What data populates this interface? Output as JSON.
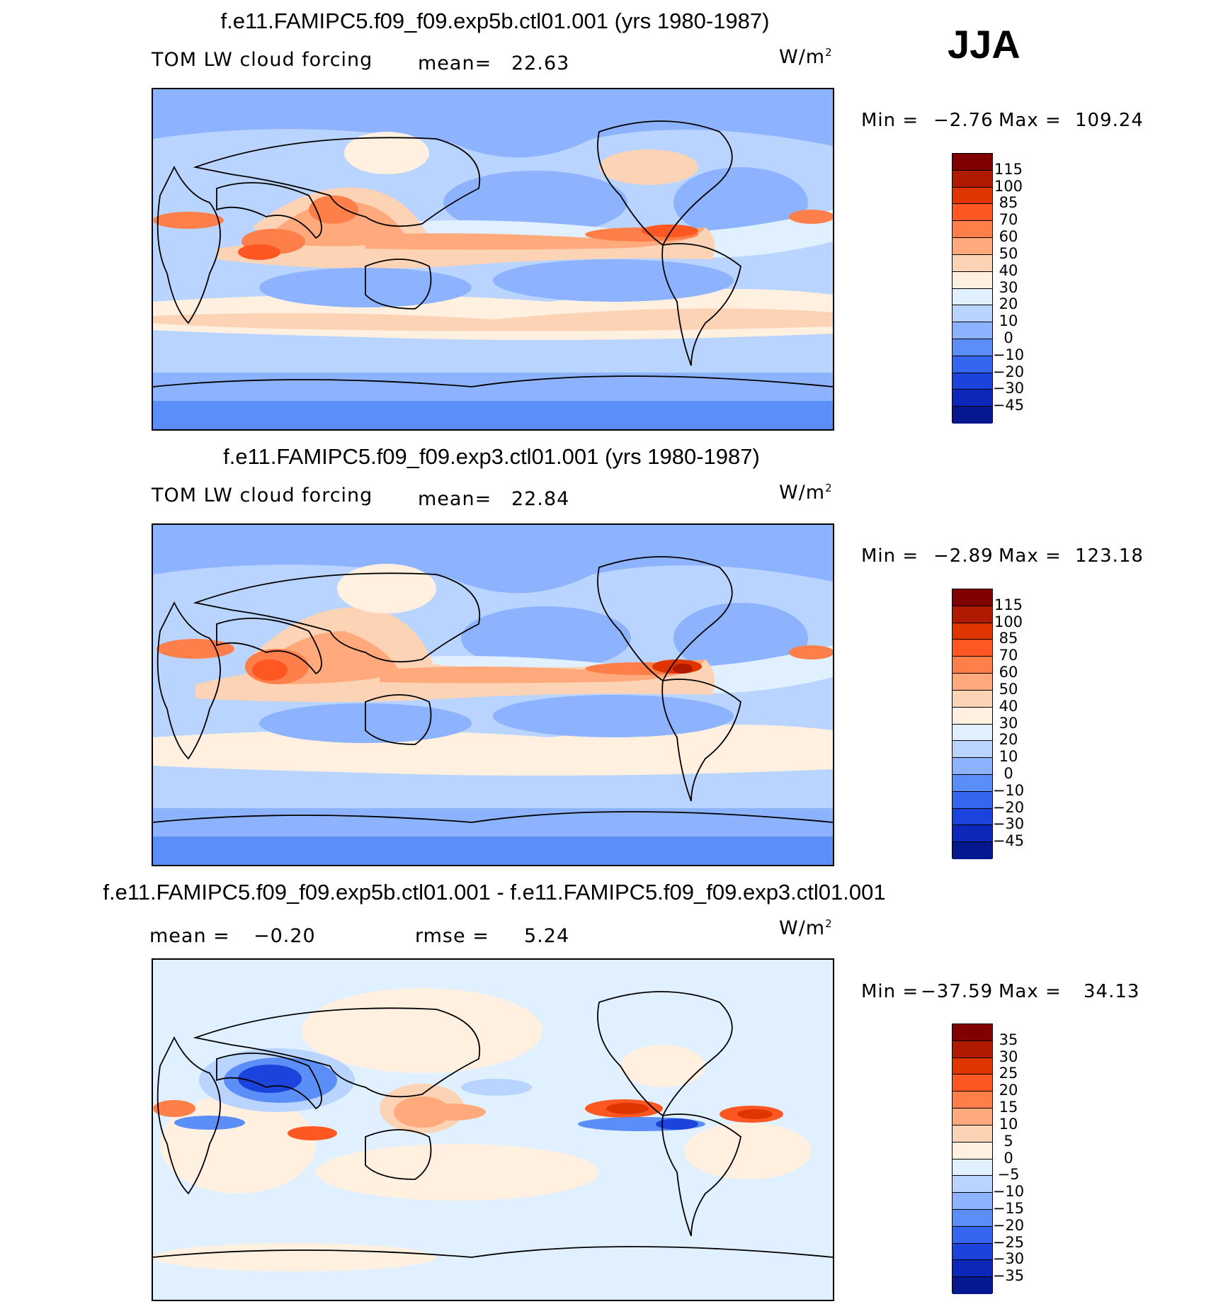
{
  "season": "JJA",
  "units_base": "W/m",
  "units_exp": "2",
  "panels": [
    {
      "title": "f.e11.FAMIPC5.f09_f09.exp5b.ctl01.001 (yrs 1980-1987)",
      "variable": "TOM LW cloud forcing",
      "mean_label": "mean=",
      "mean_value": "22.63",
      "min_label": "Min =",
      "min_value": "−2.76",
      "max_label": "Max =",
      "max_value": "109.24"
    },
    {
      "title": "f.e11.FAMIPC5.f09_f09.exp3.ctl01.001 (yrs 1980-1987)",
      "variable": "TOM LW cloud forcing",
      "mean_label": "mean=",
      "mean_value": "22.84",
      "min_label": "Min =",
      "min_value": "−2.89",
      "max_label": "Max =",
      "max_value": "123.18"
    },
    {
      "title": "f.e11.FAMIPC5.f09_f09.exp5b.ctl01.001 - f.e11.FAMIPC5.f09_f09.exp3.ctl01.001",
      "mean_label": "mean =",
      "mean_value": "−0.20",
      "rmse_label": "rmse =",
      "rmse_value": "5.24",
      "min_label": "Min =",
      "min_value": "−37.59",
      "max_label": "Max =",
      "max_value": "34.13"
    }
  ],
  "colorbar_main": {
    "colors": [
      "#800000",
      "#b01a00",
      "#e13500",
      "#ff5722",
      "#ff7f4a",
      "#ffa97c",
      "#fdd3b6",
      "#fff0e0",
      "#e0f0ff",
      "#b9d4ff",
      "#8db3ff",
      "#5b8ef7",
      "#3566f0",
      "#1c44dd",
      "#0d28b8",
      "#061890",
      "#00086a"
    ],
    "ticks": [
      "115",
      "100",
      "85",
      "70",
      "60",
      "50",
      "40",
      "30",
      "20",
      "10",
      "0",
      "−10",
      "−20",
      "−30",
      "−45"
    ]
  },
  "colorbar_diff": {
    "colors": [
      "#800000",
      "#b01a00",
      "#e13500",
      "#ff5722",
      "#ff7f4a",
      "#ffa97c",
      "#fdd3b6",
      "#fff0e0",
      "#e0f0ff",
      "#b9d4ff",
      "#8db3ff",
      "#5b8ef7",
      "#3566f0",
      "#1c44dd",
      "#0d28b8",
      "#061890",
      "#00086a"
    ],
    "ticks": [
      "35",
      "30",
      "25",
      "20",
      "15",
      "10",
      "5",
      "0",
      "−5",
      "−10",
      "−15",
      "−20",
      "−25",
      "−30",
      "−35"
    ]
  },
  "chart_data": [
    {
      "type": "heatmap",
      "title": "f.e11.FAMIPC5.f09_f09.exp5b.ctl01.001 (yrs 1980-1987)",
      "variable": "TOM LW cloud forcing",
      "units": "W/m2",
      "mean": 22.63,
      "min": -2.76,
      "max": 109.24,
      "contour_levels": [
        -45,
        -30,
        -20,
        -10,
        0,
        10,
        20,
        30,
        40,
        50,
        60,
        70,
        85,
        100,
        115
      ],
      "features": [
        "ITCZ maxima over Central America/east Pacific and Asian monsoon (70-100)",
        "Indian Ocean/Bay of Bengal maximum",
        "Southern Ocean storm track 30-40",
        "subtropical minima 0-10"
      ]
    },
    {
      "type": "heatmap",
      "title": "f.e11.FAMIPC5.f09_f09.exp3.ctl01.001 (yrs 1980-1987)",
      "variable": "TOM LW cloud forcing",
      "units": "W/m2",
      "mean": 22.84,
      "min": -2.89,
      "max": 123.18,
      "contour_levels": [
        -45,
        -30,
        -20,
        -10,
        0,
        10,
        20,
        30,
        40,
        50,
        60,
        70,
        85,
        100,
        115
      ],
      "features": [
        "stronger maximum over Central America (>100)",
        "Arabian Sea/India maximum",
        "Southern Ocean band 30-40"
      ]
    },
    {
      "type": "heatmap",
      "title": "f.e11.FAMIPC5.f09_f09.exp5b.ctl01.001 - f.e11.FAMIPC5.f09_f09.exp3.ctl01.001",
      "units": "W/m2",
      "mean": -0.2,
      "rmse": 5.24,
      "min": -37.59,
      "max": 34.13,
      "contour_levels": [
        -35,
        -30,
        -25,
        -20,
        -15,
        -10,
        -5,
        0,
        5,
        10,
        15,
        20,
        25,
        30,
        35
      ],
      "features": [
        "negative anomaly over Arabian Sea/India (-20 to -35)",
        "positive anomaly east Pacific north of equator (+20 to +30)",
        "positive anomaly tropical Atlantic (+20 to +25)",
        "negative anomaly along equatorial east Pacific (-20)"
      ]
    }
  ]
}
